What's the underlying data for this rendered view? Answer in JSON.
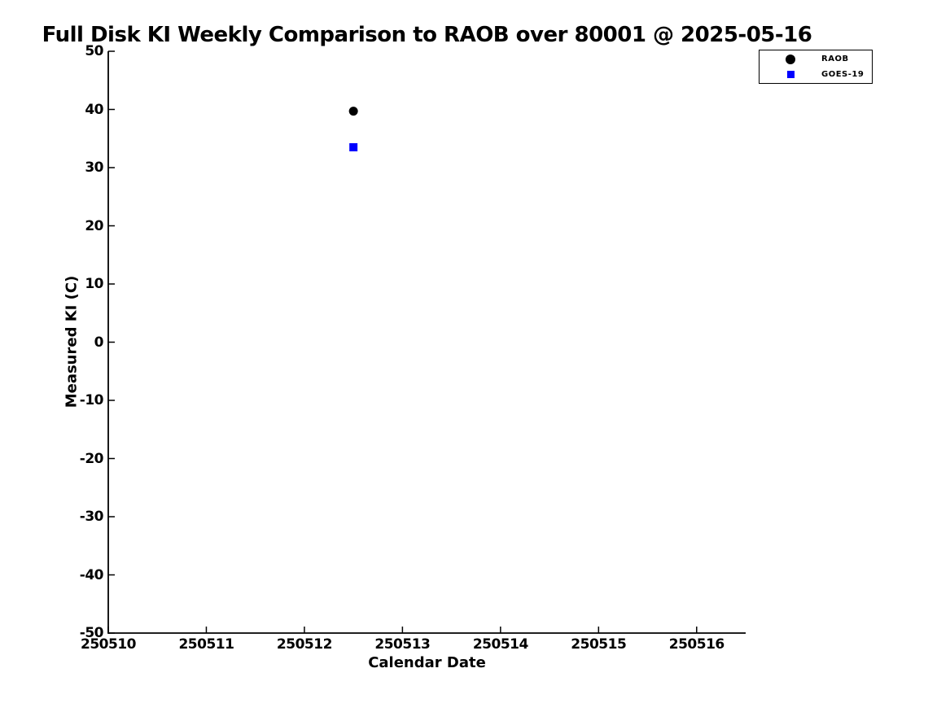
{
  "chart_data": {
    "type": "scatter",
    "title": "Full Disk KI Weekly Comparison to RAOB over 80001 @ 2025-05-16",
    "xlabel": "Calendar Date",
    "ylabel": "Measured KI (C)",
    "xlim": [
      250510,
      250516.5
    ],
    "ylim": [
      -50,
      50
    ],
    "grid": false,
    "xticks": {
      "values": [
        250510,
        250511,
        250512,
        250513,
        250514,
        250515,
        250516
      ],
      "labels": [
        "250510",
        "250511",
        "250512",
        "250513",
        "250514",
        "250515",
        "250516"
      ]
    },
    "yticks": {
      "values": [
        -50,
        -40,
        -30,
        -20,
        -10,
        0,
        10,
        20,
        30,
        40,
        50
      ],
      "labels": [
        "-50",
        "-40",
        "-30",
        "-20",
        "-10",
        "0",
        "10",
        "20",
        "30",
        "40",
        "50"
      ]
    },
    "legend": {
      "position": "upper right"
    },
    "series": [
      {
        "name": "RAOB",
        "marker": "circle",
        "color": "#000000",
        "points": [
          {
            "x": 250512.5,
            "y": 39.7
          }
        ]
      },
      {
        "name": "GOES-19",
        "marker": "square",
        "color": "#0000ff",
        "points": [
          {
            "x": 250512.5,
            "y": 33.5
          }
        ]
      }
    ]
  },
  "colors": {
    "background": "#ffffff",
    "axis": "#000000",
    "raob": "#000000",
    "goes19": "#0000ff"
  }
}
